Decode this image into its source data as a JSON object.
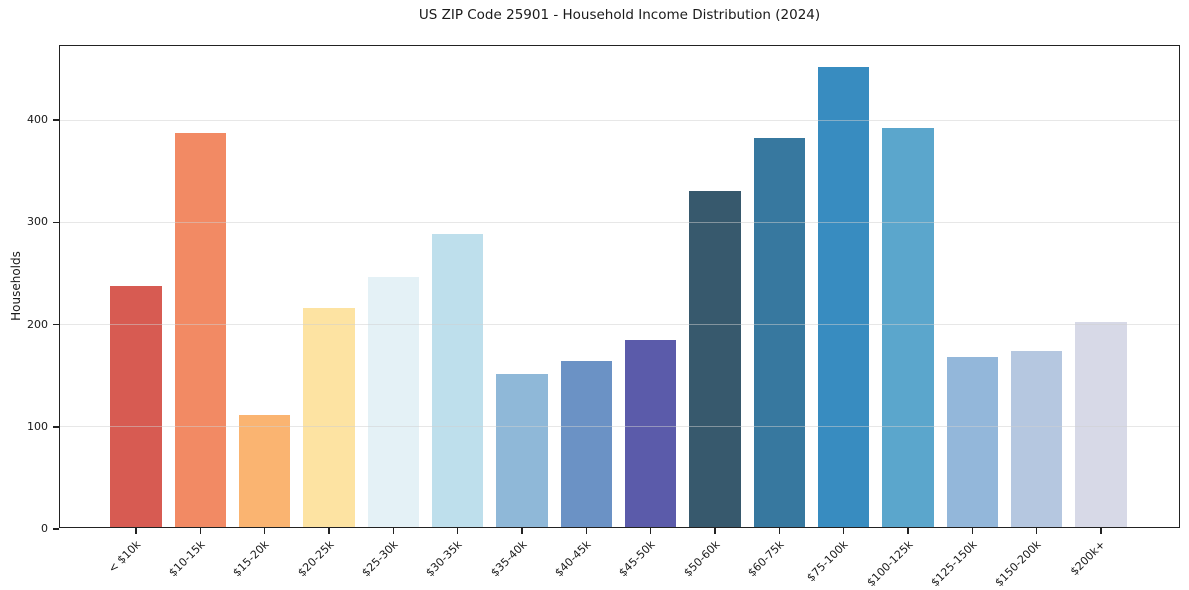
{
  "chart_data": {
    "type": "bar",
    "title": "US ZIP Code 25901 - Household Income Distribution (2024)",
    "xlabel": "",
    "ylabel": "Households",
    "categories": [
      "< $10k",
      "$10-15k",
      "$15-20k",
      "$20-25k",
      "$25-30k",
      "$30-35k",
      "$35-40k",
      "$40-45k",
      "$45-50k",
      "$50-60k",
      "$60-75k",
      "$75-100k",
      "$100-125k",
      "$125-150k",
      "$150-200k",
      "$200k+"
    ],
    "values": [
      236,
      385,
      110,
      214,
      245,
      287,
      150,
      162,
      183,
      329,
      381,
      450,
      390,
      166,
      172,
      201
    ],
    "bar_colors": [
      "#d75b52",
      "#f28a64",
      "#fab471",
      "#fde3a2",
      "#e4f1f6",
      "#bedfec",
      "#8fb8d8",
      "#6b92c5",
      "#5b5baa",
      "#37596d",
      "#37789f",
      "#388cc0",
      "#5ba6cc",
      "#93b7da",
      "#b5c7e0",
      "#d7d9e7"
    ],
    "yticks": [
      0,
      100,
      200,
      300,
      400
    ],
    "ylim": [
      0,
      472.5
    ],
    "grid": true,
    "grid_axis": "y",
    "legend": false,
    "x_tick_rotation": 45,
    "background_color": "#ffffff",
    "spine_color": "#222222",
    "grid_color": "#ececec",
    "text_color": "#1a1a1a"
  }
}
